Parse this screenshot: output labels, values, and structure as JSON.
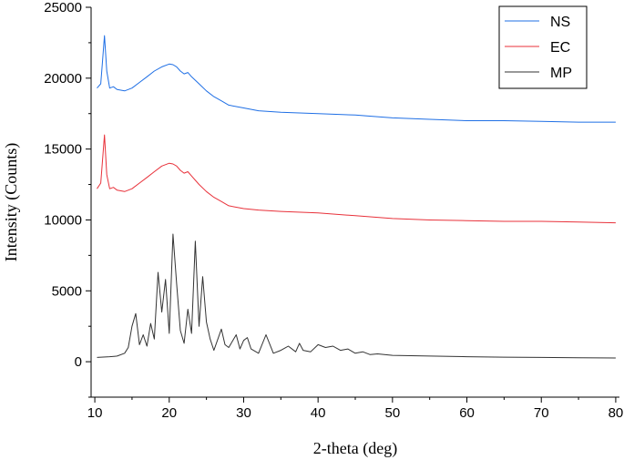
{
  "chart_data": {
    "type": "line",
    "title": "",
    "xlabel": "2-theta (deg)",
    "ylabel": "Intensity (Counts)",
    "xlim": [
      9.5,
      80.5
    ],
    "ylim": [
      -2500,
      25000
    ],
    "x_ticks": [
      10,
      20,
      30,
      40,
      50,
      60,
      70,
      80
    ],
    "y_ticks": [
      0,
      5000,
      10000,
      15000,
      20000,
      25000
    ],
    "grid": false,
    "legend_position": "top-right",
    "series": [
      {
        "name": "NS",
        "color": "#1f6fe5",
        "x": [
          10.3,
          10.8,
          11.0,
          11.3,
          11.6,
          12.0,
          12.5,
          13.0,
          14.0,
          15.0,
          16.0,
          17.0,
          18.0,
          19.0,
          20.0,
          20.5,
          21.0,
          21.5,
          22.0,
          22.5,
          23.0,
          24.0,
          25.0,
          26.0,
          27.0,
          28.0,
          30.0,
          32.0,
          35.0,
          40.0,
          45.0,
          50.0,
          55.0,
          60.0,
          65.0,
          70.0,
          75.0,
          80.0
        ],
        "y": [
          19300,
          19600,
          21000,
          23000,
          20500,
          19300,
          19400,
          19200,
          19100,
          19300,
          19700,
          20100,
          20500,
          20800,
          21000,
          20950,
          20800,
          20500,
          20300,
          20400,
          20100,
          19600,
          19100,
          18700,
          18400,
          18100,
          17900,
          17700,
          17600,
          17500,
          17400,
          17200,
          17100,
          17000,
          17000,
          16950,
          16900,
          16900
        ]
      },
      {
        "name": "EC",
        "color": "#e8313a",
        "x": [
          10.3,
          10.8,
          11.0,
          11.3,
          11.6,
          12.0,
          12.5,
          13.0,
          14.0,
          15.0,
          16.0,
          17.0,
          18.0,
          19.0,
          20.0,
          20.5,
          21.0,
          21.5,
          22.0,
          22.5,
          23.0,
          24.0,
          25.0,
          26.0,
          27.0,
          28.0,
          30.0,
          32.0,
          35.0,
          40.0,
          45.0,
          50.0,
          55.0,
          60.0,
          65.0,
          70.0,
          75.0,
          80.0
        ],
        "y": [
          12200,
          12600,
          14000,
          16000,
          13200,
          12200,
          12300,
          12100,
          12000,
          12200,
          12600,
          13000,
          13400,
          13800,
          14000,
          13950,
          13800,
          13500,
          13300,
          13400,
          13100,
          12500,
          12000,
          11600,
          11300,
          11000,
          10800,
          10700,
          10600,
          10500,
          10300,
          10100,
          10000,
          9950,
          9900,
          9900,
          9850,
          9800
        ]
      },
      {
        "name": "MP",
        "color": "#333333",
        "x": [
          10.3,
          12.0,
          13.0,
          14.0,
          14.5,
          15.0,
          15.5,
          16.0,
          16.5,
          17.0,
          17.5,
          18.0,
          18.5,
          19.0,
          19.5,
          20.0,
          20.5,
          21.0,
          21.5,
          22.0,
          22.5,
          23.0,
          23.5,
          24.0,
          24.5,
          25.0,
          25.5,
          26.0,
          27.0,
          27.5,
          28.0,
          29.0,
          29.5,
          30.0,
          30.5,
          31.0,
          32.0,
          33.0,
          34.0,
          35.0,
          36.0,
          37.0,
          37.5,
          38.0,
          39.0,
          40.0,
          41.0,
          42.0,
          43.0,
          44.0,
          45.0,
          46.0,
          47.0,
          48.0,
          50.0,
          55.0,
          60.0,
          65.0,
          70.0,
          75.0,
          80.0
        ],
        "y": [
          300,
          350,
          400,
          600,
          1000,
          2500,
          3400,
          1200,
          1900,
          1100,
          2700,
          1600,
          6300,
          3500,
          5800,
          2000,
          9000,
          5500,
          2200,
          1300,
          3700,
          2000,
          8500,
          2500,
          6000,
          2800,
          1600,
          800,
          2300,
          1200,
          1000,
          1900,
          900,
          1500,
          1700,
          900,
          600,
          1900,
          600,
          800,
          1100,
          700,
          1300,
          800,
          700,
          1200,
          1000,
          1100,
          800,
          900,
          600,
          700,
          500,
          550,
          450,
          400,
          350,
          320,
          300,
          280,
          260
        ]
      }
    ]
  }
}
